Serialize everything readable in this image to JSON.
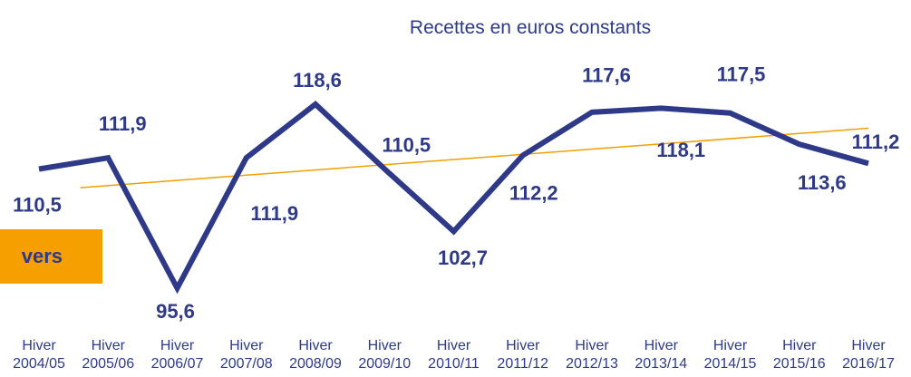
{
  "chart_data": {
    "type": "line",
    "title": "Recettes en euros constants",
    "annotation": "vers",
    "categories": [
      "Hiver 2004/05",
      "Hiver 2005/06",
      "Hiver 2006/07",
      "Hiver 2007/08",
      "Hiver 2008/09",
      "Hiver 2009/10",
      "Hiver 2010/11",
      "Hiver 2011/12",
      "Hiver 2012/13",
      "Hiver 2013/14",
      "Hiver 2014/15",
      "Hiver 2015/16",
      "Hiver 2016/17"
    ],
    "values": [
      110.5,
      111.9,
      95.6,
      111.9,
      118.6,
      110.5,
      102.7,
      112.2,
      117.6,
      118.1,
      117.5,
      113.6,
      111.2
    ],
    "value_labels": [
      "110,5",
      "111,9",
      "95,6",
      "111,9",
      "118,6",
      "110,5",
      "102,7",
      "112,2",
      "117,6",
      "118,1",
      "117,5",
      "113,6",
      "111,2"
    ],
    "color": "#2e3a87",
    "trendline": true,
    "trendline_color": "#f0a000"
  }
}
